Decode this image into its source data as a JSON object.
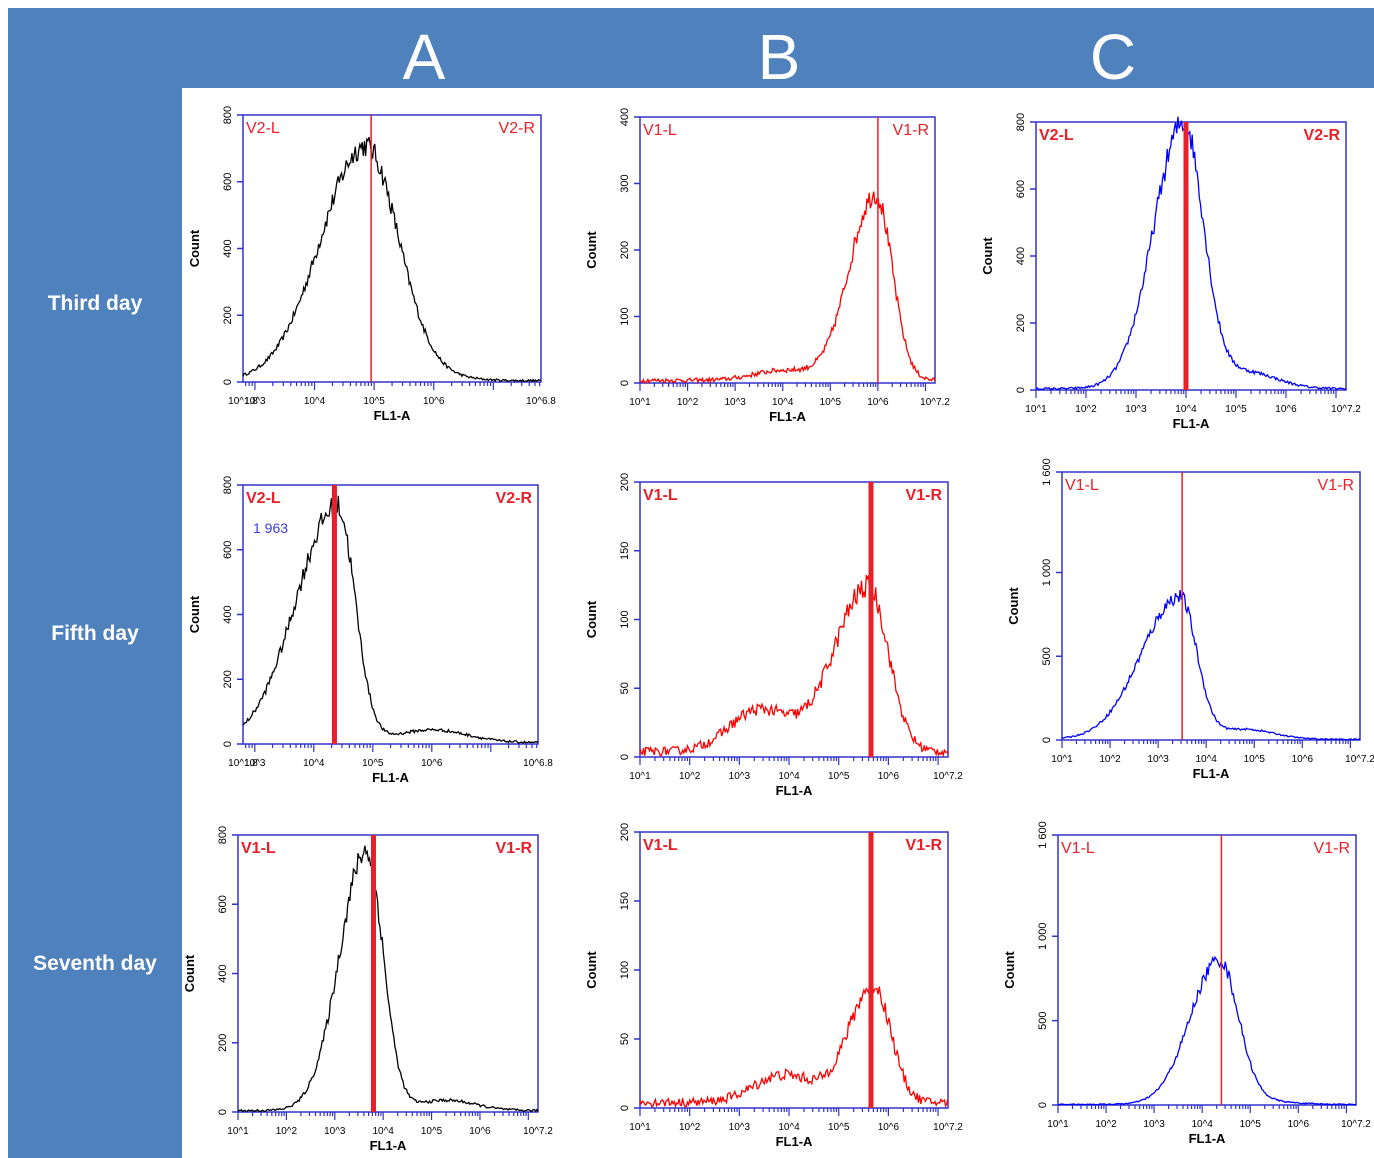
{
  "header": {
    "columns": [
      "A",
      "B",
      "C"
    ],
    "color": "#4f81bd"
  },
  "rows": [
    "Third day",
    "Fifth day",
    "Seventh day"
  ],
  "colors": {
    "A": "#000000",
    "B": "#ff0000",
    "C": "#0000ff",
    "gate": "#e8202a",
    "frame": "#3333cc"
  },
  "chart_data": [
    {
      "type": "area",
      "panel": "A-third",
      "row": "Third day",
      "column": "A",
      "xlabel": "FL1-A",
      "ylabel": "Count",
      "x_log_range": [
        1.8,
        6.8
      ],
      "ylim": [
        0,
        800
      ],
      "yticks": [
        0,
        200,
        400,
        600,
        800
      ],
      "xtick_labels": [
        "10^1.8",
        "10^3",
        "10^4",
        "10^5",
        "10^6",
        "10^6.8"
      ],
      "gate_labels": [
        "V2-L",
        "V2-R"
      ],
      "gate_x_log": 3.95,
      "gate_bold": false,
      "annotation": "",
      "series": [
        {
          "peak_log": 3.85,
          "peak": 700,
          "width_left": 0.75,
          "width_right": 0.55,
          "tail": 15,
          "tail_center": 4.8
        }
      ]
    },
    {
      "type": "area",
      "panel": "B-third",
      "row": "Third day",
      "column": "B",
      "xlabel": "FL1-A",
      "ylabel": "Count",
      "x_log_range": [
        1,
        7.2
      ],
      "ylim": [
        0,
        400
      ],
      "yticks": [
        0,
        100,
        200,
        300,
        400
      ],
      "xtick_labels": [
        "10^1",
        "10^2",
        "10^3",
        "10^4",
        "10^5",
        "10^6",
        "10^7.2"
      ],
      "gate_labels": [
        "V1-L",
        "V1-R"
      ],
      "gate_x_log": 6.0,
      "gate_bold": false,
      "annotation": "",
      "series": [
        {
          "peak_log": 5.95,
          "peak": 280,
          "width_left": 0.55,
          "width_right": 0.35,
          "tail": 15,
          "tail_center": 4.0
        }
      ]
    },
    {
      "type": "area",
      "panel": "C-third",
      "row": "Third day",
      "column": "C",
      "xlabel": "FL1-A",
      "ylabel": "Count",
      "x_log_range": [
        1,
        7.2
      ],
      "ylim": [
        0,
        800
      ],
      "yticks": [
        0,
        200,
        400,
        600,
        800
      ],
      "xtick_labels": [
        "10^1",
        "10^2",
        "10^3",
        "10^4",
        "10^5",
        "10^6",
        "10^7.2"
      ],
      "gate_labels": [
        "V2-L",
        "V2-R"
      ],
      "gate_x_log": 4.0,
      "gate_bold": true,
      "annotation": "",
      "series": [
        {
          "peak_log": 3.95,
          "peak": 790,
          "width_left": 0.6,
          "width_right": 0.4,
          "tail": 50,
          "tail_center": 5.2
        }
      ]
    },
    {
      "type": "area",
      "panel": "A-fifth",
      "row": "Fifth day",
      "column": "A",
      "xlabel": "FL1-A",
      "ylabel": "Count",
      "x_log_range": [
        1.8,
        6.8
      ],
      "ylim": [
        0,
        800
      ],
      "yticks": [
        0,
        200,
        400,
        600,
        800
      ],
      "xtick_labels": [
        "10^1.8",
        "10^3",
        "10^4",
        "10^5",
        "10^6",
        "10^6.8"
      ],
      "gate_labels": [
        "V2-L",
        "V2-R"
      ],
      "gate_x_log": 3.35,
      "gate_bold": true,
      "annotation": "1 963",
      "series": [
        {
          "peak_log": 3.4,
          "peak": 730,
          "width_left": 0.7,
          "width_right": 0.3,
          "tail": 40,
          "tail_center": 5.0
        }
      ]
    },
    {
      "type": "area",
      "panel": "B-fifth",
      "row": "Fifth day",
      "column": "B",
      "xlabel": "FL1-A",
      "ylabel": "Count",
      "x_log_range": [
        1,
        7.2
      ],
      "ylim": [
        0,
        200
      ],
      "yticks": [
        0,
        50,
        100,
        150,
        200
      ],
      "xtick_labels": [
        "10^1",
        "10^2",
        "10^3",
        "10^4",
        "10^5",
        "10^6",
        "10^7.2"
      ],
      "gate_labels": [
        "V1-L",
        "V1-R"
      ],
      "gate_x_log": 5.65,
      "gate_bold": true,
      "annotation": "",
      "series": [
        {
          "peak_log": 5.6,
          "peak": 120,
          "width_left": 0.7,
          "width_right": 0.4,
          "tail": 30,
          "tail_center": 3.4
        }
      ]
    },
    {
      "type": "area",
      "panel": "C-fifth",
      "row": "Fifth day",
      "column": "C",
      "xlabel": "FL1-A",
      "ylabel": "Count",
      "x_log_range": [
        1,
        7.2
      ],
      "ylim": [
        0,
        1600
      ],
      "yticks": [
        0,
        500,
        1000,
        1600
      ],
      "ytick_labels": [
        "0",
        "500",
        "1 000",
        "1 600"
      ],
      "xtick_labels": [
        "10^1",
        "10^2",
        "10^3",
        "10^4",
        "10^5",
        "10^6",
        "10^7.2"
      ],
      "gate_labels": [
        "V1-L",
        "V1-R"
      ],
      "gate_x_log": 3.5,
      "gate_bold": false,
      "annotation": "",
      "series": [
        {
          "peak_log": 3.45,
          "peak": 850,
          "width_left": 0.8,
          "width_right": 0.35,
          "tail": 60,
          "tail_center": 4.8
        }
      ]
    },
    {
      "type": "area",
      "panel": "A-seventh",
      "row": "Seventh day",
      "column": "A",
      "xlabel": "FL1-A",
      "ylabel": "Count",
      "x_log_range": [
        1,
        7.2
      ],
      "ylim": [
        0,
        800
      ],
      "yticks": [
        0,
        200,
        400,
        600,
        800
      ],
      "xtick_labels": [
        "10^1",
        "10^2",
        "10^3",
        "10^4",
        "10^5",
        "10^6",
        "10^7.2"
      ],
      "gate_labels": [
        "V1-L",
        "V1-R"
      ],
      "gate_x_log": 3.8,
      "gate_bold": true,
      "annotation": "",
      "series": [
        {
          "peak_log": 3.65,
          "peak": 750,
          "width_left": 0.55,
          "width_right": 0.35,
          "tail": 30,
          "tail_center": 5.3
        }
      ]
    },
    {
      "type": "area",
      "panel": "B-seventh",
      "row": "Seventh day",
      "column": "B",
      "xlabel": "FL1-A",
      "ylabel": "Count",
      "x_log_range": [
        1,
        7.2
      ],
      "ylim": [
        0,
        200
      ],
      "yticks": [
        0,
        50,
        100,
        150,
        200
      ],
      "xtick_labels": [
        "10^1",
        "10^2",
        "10^3",
        "10^4",
        "10^5",
        "10^6",
        "10^7.2"
      ],
      "gate_labels": [
        "V1-L",
        "V1-R"
      ],
      "gate_x_log": 5.65,
      "gate_bold": true,
      "annotation": "",
      "series": [
        {
          "peak_log": 5.7,
          "peak": 85,
          "width_left": 0.5,
          "width_right": 0.35,
          "tail": 20,
          "tail_center": 3.9
        }
      ]
    },
    {
      "type": "area",
      "panel": "C-seventh",
      "row": "Seventh day",
      "column": "C",
      "xlabel": "FL1-A",
      "ylabel": "Count",
      "x_log_range": [
        1,
        7.2
      ],
      "ylim": [
        0,
        1600
      ],
      "yticks": [
        0,
        500,
        1000,
        1600
      ],
      "ytick_labels": [
        "0",
        "500",
        "1 000",
        "1 600"
      ],
      "xtick_labels": [
        "10^1",
        "10^2",
        "10^3",
        "10^4",
        "10^5",
        "10^6",
        "10^7.2"
      ],
      "gate_labels": [
        "V1-L",
        "V1-R"
      ],
      "gate_x_log": 4.4,
      "gate_bold": false,
      "annotation": "",
      "series": [
        {
          "peak_log": 4.35,
          "peak": 850,
          "width_left": 0.6,
          "width_right": 0.4,
          "tail": 20,
          "tail_center": 5.2
        }
      ]
    }
  ]
}
